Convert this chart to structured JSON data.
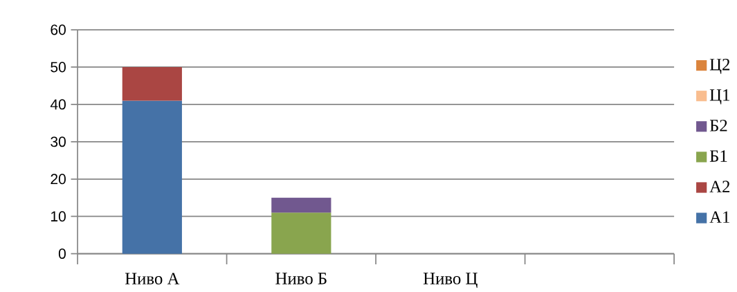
{
  "chart_data": {
    "type": "bar",
    "stacked": true,
    "categories": [
      "Ниво А",
      "Ниво Б",
      "Ниво Ц",
      null
    ],
    "series": [
      {
        "name": "А1",
        "color": "#4572a7",
        "values": [
          41,
          null,
          null,
          null
        ]
      },
      {
        "name": "А2",
        "color": "#aa4643",
        "values": [
          9,
          null,
          null,
          null
        ]
      },
      {
        "name": "Б1",
        "color": "#89a54e",
        "values": [
          null,
          11,
          null,
          null
        ]
      },
      {
        "name": "Б2",
        "color": "#71588f",
        "values": [
          null,
          4,
          null,
          null
        ]
      },
      {
        "name": "Ц1",
        "color": "#f9bd8f",
        "values": [
          null,
          null,
          null,
          null
        ]
      },
      {
        "name": "Ц2",
        "color": "#db843d",
        "values": [
          null,
          null,
          null,
          null
        ]
      }
    ],
    "ylim": [
      0,
      60
    ],
    "yticks": [
      0,
      10,
      20,
      30,
      40,
      50,
      60
    ],
    "grid": "y",
    "legend": "right"
  }
}
